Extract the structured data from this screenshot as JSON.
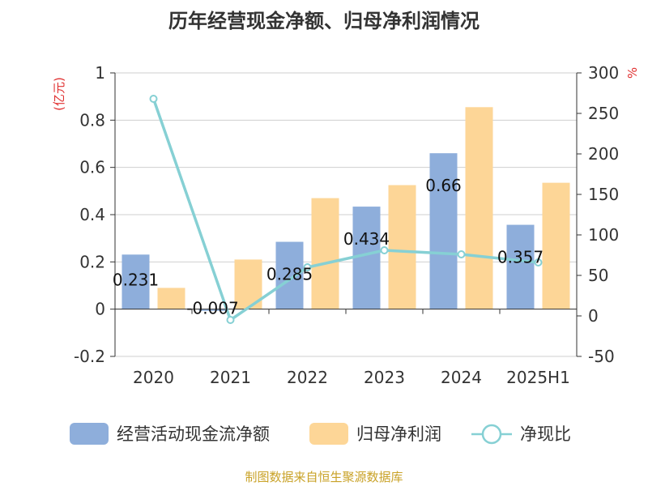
{
  "chart_data": {
    "type": "bar",
    "title": "历年经营现金净额、归母净利润情况",
    "categories": [
      "2020",
      "2021",
      "2022",
      "2023",
      "2024",
      "2025H1"
    ],
    "left_axis": {
      "unit": "(亿元)",
      "ticks": [
        "1",
        "0.8",
        "0.6",
        "0.4",
        "0.2",
        "0",
        "-0.2"
      ],
      "ylim": [
        -0.2,
        1
      ]
    },
    "right_axis": {
      "unit": "%",
      "ticks": [
        "300",
        "250",
        "200",
        "150",
        "100",
        "50",
        "0",
        "-50"
      ],
      "ylim": [
        -50,
        300
      ]
    },
    "series": [
      {
        "name": "经营活动现金流净额",
        "type": "bar",
        "axis": "left",
        "color": "#8eaedb",
        "values": [
          0.231,
          -0.007,
          0.285,
          0.434,
          0.66,
          0.357
        ],
        "data_labels": [
          "0.231",
          "-0.007",
          "0.285",
          "0.434",
          "0.66",
          "0.357"
        ]
      },
      {
        "name": "归母净利润",
        "type": "bar",
        "axis": "left",
        "color": "#fdd697",
        "values": [
          0.09,
          0.21,
          0.47,
          0.525,
          0.855,
          0.535
        ]
      },
      {
        "name": "净现比",
        "type": "line",
        "axis": "right",
        "color": "#86d0d4",
        "values": [
          268,
          -5,
          60,
          81,
          76,
          66
        ]
      }
    ],
    "grid": true,
    "legend_position": "bottom"
  },
  "source_note": "制图数据来自恒生聚源数据库"
}
